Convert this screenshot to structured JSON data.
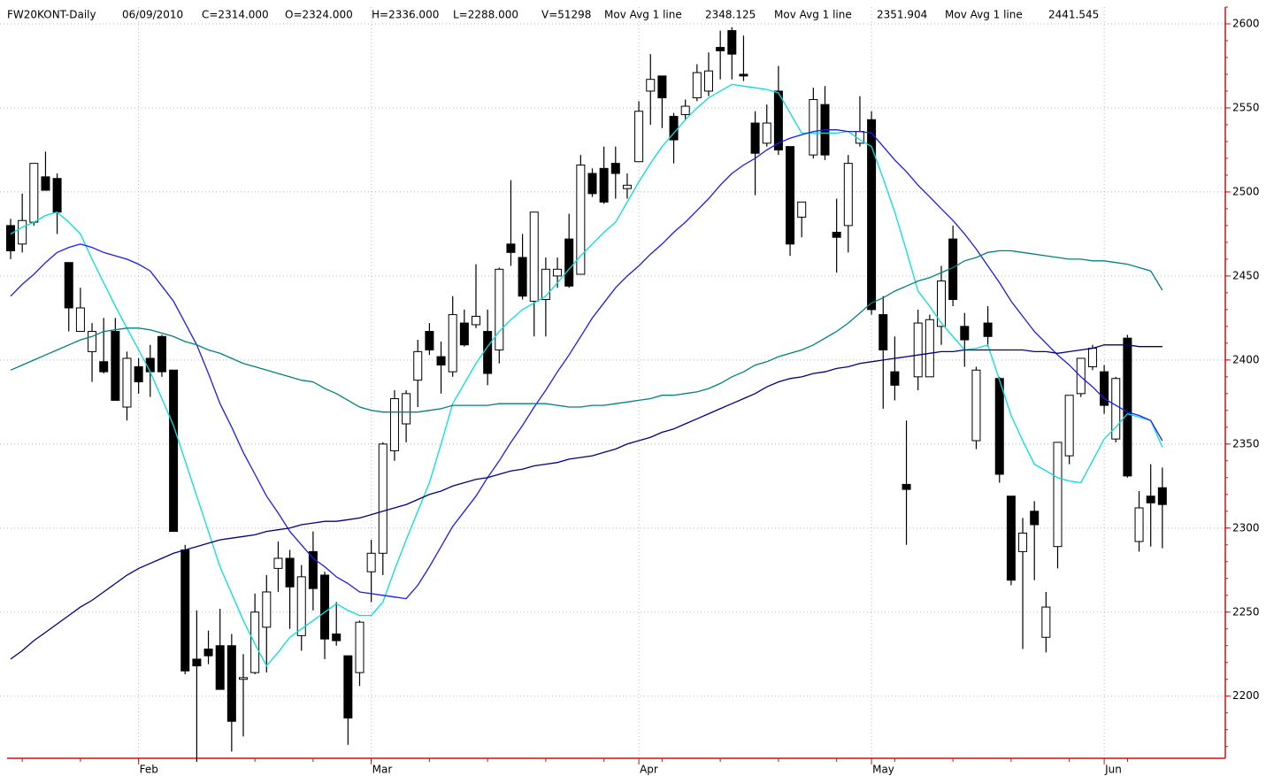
{
  "chart_data": {
    "type": "candlestick",
    "title": "FW20KONT-Daily",
    "date": "06/09/2010",
    "quote": [
      {
        "text": "C=2314.000",
        "color": "#008000"
      },
      {
        "text": "O=2324.000",
        "color": "#008000"
      },
      {
        "text": "H=2336.000",
        "color": "#000000"
      },
      {
        "text": "L=2288.000",
        "color": "#000000"
      },
      {
        "text": "V=51298",
        "color": "#000000"
      }
    ],
    "categories": [
      null,
      null,
      null,
      null,
      null,
      null,
      null,
      null,
      null,
      null,
      null,
      "Feb",
      null,
      null,
      null,
      null,
      null,
      null,
      null,
      null,
      null,
      null,
      null,
      null,
      null,
      null,
      null,
      null,
      null,
      null,
      null,
      "Mar",
      null,
      null,
      null,
      null,
      null,
      null,
      null,
      null,
      null,
      null,
      null,
      null,
      null,
      null,
      null,
      null,
      null,
      null,
      null,
      null,
      null,
      null,
      "Apr",
      null,
      null,
      null,
      null,
      null,
      null,
      null,
      null,
      null,
      null,
      null,
      null,
      null,
      null,
      null,
      null,
      null,
      null,
      null,
      "May",
      null,
      null,
      null,
      null,
      null,
      null,
      null,
      null,
      null,
      null,
      null,
      null,
      null,
      null,
      null,
      null,
      null,
      null,
      null,
      "Jun",
      null,
      null,
      null,
      null,
      null
    ],
    "open": [
      2480,
      2469,
      2482,
      2509,
      2508,
      2458,
      2417,
      2405,
      2399,
      2417,
      2372,
      2396,
      2401,
      2414,
      2394,
      2287,
      2222,
      2228,
      2230,
      2230,
      2210,
      2214,
      2241,
      2276,
      2282,
      2236,
      2286,
      2272,
      2237,
      2224,
      2214,
      2274,
      2285,
      2346,
      2362,
      2388,
      2417,
      2402,
      2393,
      2422,
      2421,
      2417,
      2406,
      2469,
      2461,
      2435,
      2436,
      2450,
      2472,
      2451,
      2511,
      2514,
      2517,
      2502,
      2518,
      2560,
      2569,
      2545,
      2546,
      2556,
      2560,
      2586,
      2596,
      2570,
      2541,
      2529,
      2560,
      2527,
      2485,
      2522,
      2552,
      2476,
      2480,
      2529,
      2543,
      2427,
      2393,
      2326,
      2390,
      2390,
      2420,
      2472,
      2420,
      2352,
      2422,
      2389,
      2319,
      2286,
      2310,
      2235,
      2289,
      2343,
      2380,
      2396,
      2393,
      2353,
      2413,
      2292,
      2319,
      2324
    ],
    "high": [
      2484,
      2499,
      2517,
      2524,
      2511,
      2458,
      2443,
      2422,
      2425,
      2425,
      2405,
      2401,
      2409,
      2415,
      2394,
      2290,
      2251,
      2239,
      2252,
      2237,
      2225,
      2261,
      2272,
      2292,
      2287,
      2278,
      2298,
      2274,
      2256,
      2224,
      2245,
      2293,
      2351,
      2382,
      2382,
      2412,
      2422,
      2411,
      2438,
      2430,
      2457,
      2430,
      2455,
      2507,
      2475,
      2488,
      2461,
      2461,
      2487,
      2522,
      2514,
      2527,
      2527,
      2511,
      2554,
      2582,
      2569,
      2547,
      2555,
      2576,
      2583,
      2596,
      2598,
      2593,
      2548,
      2552,
      2575,
      2527,
      2494,
      2562,
      2563,
      2496,
      2522,
      2557,
      2548,
      2438,
      2414,
      2364,
      2430,
      2427,
      2456,
      2480,
      2428,
      2396,
      2432,
      2390,
      2319,
      2306,
      2316,
      2262,
      2351,
      2379,
      2401,
      2409,
      2397,
      2390,
      2415,
      2322,
      2338,
      2336
    ],
    "low": [
      2460,
      2464,
      2480,
      2501,
      2475,
      2417,
      2417,
      2387,
      2392,
      2376,
      2364,
      2380,
      2378,
      2390,
      2298,
      2213,
      2161,
      2219,
      2204,
      2167,
      2176,
      2213,
      2214,
      2262,
      2240,
      2227,
      2251,
      2222,
      2230,
      2171,
      2206,
      2256,
      2272,
      2340,
      2351,
      2372,
      2403,
      2380,
      2390,
      2408,
      2419,
      2385,
      2398,
      2456,
      2436,
      2414,
      2414,
      2443,
      2443,
      2451,
      2497,
      2493,
      2496,
      2496,
      2518,
      2540,
      2538,
      2517,
      2543,
      2554,
      2557,
      2567,
      2567,
      2566,
      2498,
      2527,
      2522,
      2462,
      2473,
      2520,
      2519,
      2452,
      2464,
      2527,
      2427,
      2371,
      2376,
      2290,
      2382,
      2390,
      2409,
      2432,
      2396,
      2347,
      2408,
      2327,
      2266,
      2228,
      2269,
      2226,
      2276,
      2338,
      2378,
      2394,
      2368,
      2351,
      2330,
      2286,
      2289,
      2288
    ],
    "close": [
      2465,
      2483,
      2517,
      2501,
      2488,
      2431,
      2431,
      2417,
      2393,
      2376,
      2401,
      2387,
      2393,
      2393,
      2298,
      2215,
      2218,
      2224,
      2204,
      2185,
      2211,
      2250,
      2262,
      2282,
      2265,
      2271,
      2264,
      2234,
      2233,
      2187,
      2244,
      2285,
      2350,
      2377,
      2380,
      2405,
      2406,
      2397,
      2427,
      2409,
      2426,
      2392,
      2454,
      2464,
      2438,
      2488,
      2454,
      2454,
      2444,
      2516,
      2499,
      2494,
      2511,
      2504,
      2548,
      2567,
      2556,
      2531,
      2551,
      2571,
      2572,
      2584,
      2582,
      2569,
      2523,
      2541,
      2525,
      2469,
      2494,
      2555,
      2522,
      2473,
      2517,
      2536,
      2430,
      2406,
      2385,
      2323,
      2422,
      2424,
      2447,
      2436,
      2412,
      2394,
      2414,
      2332,
      2269,
      2297,
      2302,
      2253,
      2351,
      2379,
      2401,
      2407,
      2373,
      2389,
      2331,
      2312,
      2315,
      2314
    ],
    "up_color": "#ffffff",
    "down_color": "#000000",
    "series": [
      {
        "name": "Mov Avg 1 line",
        "color": "#00e0e0",
        "values": [
          2475,
          2479,
          2482,
          2486,
          2488,
          2482,
          2475,
          2460,
          2446,
          2432,
          2419,
          2406,
          2393,
          2377,
          2361,
          2340,
          2319,
          2298,
          2277,
          2261,
          2245,
          2231,
          2218,
          2226,
          2235,
          2240,
          2245,
          2250,
          2255,
          2251,
          2248,
          2248,
          2256,
          2275,
          2293,
          2310,
          2327,
          2350,
          2374,
          2386,
          2398,
          2408,
          2417,
          2424,
          2430,
          2434,
          2438,
          2446,
          2454,
          2462,
          2469,
          2476,
          2482,
          2494,
          2506,
          2517,
          2527,
          2535,
          2543,
          2550,
          2556,
          2560,
          2564,
          2563,
          2562,
          2561,
          2559,
          2547,
          2535,
          2535,
          2535,
          2535,
          2536,
          2531,
          2527,
          2508,
          2488,
          2465,
          2441,
          2432,
          2422,
          2414,
          2406,
          2407,
          2409,
          2388,
          2367,
          2352,
          2338,
          2334,
          2330,
          2328,
          2327,
          2340,
          2353,
          2360,
          2368,
          2366,
          2364,
          2348.125
        ]
      },
      {
        "name": "Mov Avg 1 line",
        "color": "#1a1aff",
        "values": [
          2438,
          2445,
          2451,
          2458,
          2464,
          2467,
          2469,
          2467,
          2464,
          2462,
          2460,
          2457,
          2453,
          2444,
          2435,
          2422,
          2409,
          2392,
          2374,
          2360,
          2345,
          2332,
          2319,
          2309,
          2298,
          2290,
          2282,
          2277,
          2271,
          2267,
          2262,
          2261,
          2260,
          2259,
          2258,
          2266,
          2277,
          2289,
          2301,
          2310,
          2319,
          2330,
          2340,
          2351,
          2361,
          2372,
          2382,
          2393,
          2403,
          2414,
          2425,
          2434,
          2443,
          2450,
          2456,
          2463,
          2469,
          2476,
          2482,
          2489,
          2496,
          2504,
          2511,
          2516,
          2520,
          2525,
          2529,
          2532,
          2534,
          2536,
          2537,
          2537,
          2536,
          2536,
          2535,
          2527,
          2519,
          2512,
          2504,
          2497,
          2490,
          2483,
          2475,
          2466,
          2456,
          2446,
          2435,
          2426,
          2417,
          2410,
          2403,
          2397,
          2390,
          2384,
          2377,
          2373,
          2369,
          2367,
          2364,
          2351.904
        ]
      },
      {
        "name": "Mov Avg 1 line",
        "color": "#008080",
        "values": [
          2394,
          2397,
          2400,
          2403,
          2406,
          2409,
          2412,
          2414,
          2417,
          2418,
          2419,
          2419,
          2418,
          2416,
          2414,
          2411,
          2409,
          2406,
          2404,
          2401,
          2398,
          2396,
          2394,
          2392,
          2390,
          2388,
          2387,
          2383,
          2380,
          2376,
          2372,
          2370,
          2369,
          2369,
          2369,
          2369,
          2370,
          2371,
          2373,
          2373,
          2373,
          2373,
          2374,
          2374,
          2374,
          2374,
          2374,
          2373,
          2372,
          2372,
          2373,
          2373,
          2374,
          2375,
          2376,
          2377,
          2379,
          2379,
          2380,
          2381,
          2383,
          2386,
          2390,
          2393,
          2397,
          2399,
          2402,
          2404,
          2406,
          2409,
          2413,
          2417,
          2422,
          2428,
          2434,
          2437,
          2441,
          2444,
          2447,
          2449,
          2452,
          2455,
          2459,
          2461,
          2464,
          2465,
          2465,
          2464,
          2463,
          2462,
          2461,
          2460,
          2460,
          2459,
          2459,
          2458,
          2457,
          2455,
          2453,
          2441.545
        ]
      },
      {
        "color": "#000080",
        "values": [
          2222,
          2227,
          2233,
          2238,
          2243,
          2248,
          2253,
          2257,
          2262,
          2267,
          2272,
          2276,
          2279,
          2282,
          2285,
          2287,
          2289,
          2291,
          2293,
          2294,
          2295,
          2296,
          2298,
          2299,
          2300,
          2302,
          2303,
          2304,
          2304,
          2305,
          2306,
          2308,
          2310,
          2312,
          2314,
          2317,
          2320,
          2322,
          2325,
          2327,
          2329,
          2330,
          2332,
          2334,
          2335,
          2337,
          2338,
          2339,
          2341,
          2342,
          2343,
          2345,
          2347,
          2350,
          2352,
          2354,
          2357,
          2359,
          2362,
          2365,
          2368,
          2371,
          2374,
          2377,
          2380,
          2384,
          2387,
          2389,
          2390,
          2392,
          2393,
          2395,
          2396,
          2398,
          2399,
          2400,
          2401,
          2402,
          2403,
          2404,
          2405,
          2405,
          2406,
          2406,
          2406,
          2406,
          2406,
          2406,
          2405,
          2405,
          2404,
          2405,
          2406,
          2407,
          2409,
          2409,
          2409,
          2408,
          2408,
          2408
        ]
      }
    ],
    "ylim": [
      2163,
      2610
    ],
    "yticks": [
      2200,
      2250,
      2300,
      2350,
      2400,
      2450,
      2500,
      2550,
      2600
    ],
    "grid": true,
    "axis_color": "#d01010"
  }
}
